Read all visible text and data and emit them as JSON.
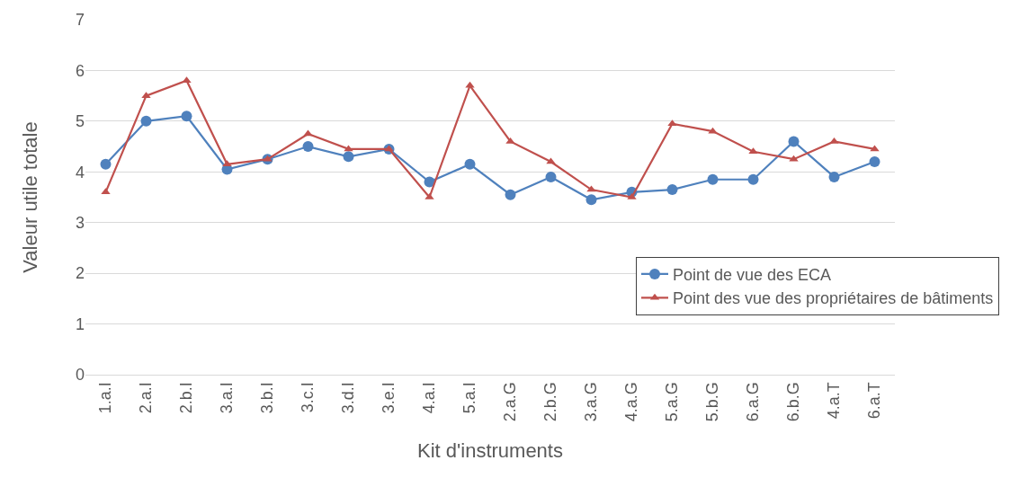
{
  "chart_data": {
    "type": "line",
    "xlabel": "Kit d'instruments",
    "ylabel": "Valeur utile totale",
    "categories": [
      "1.a.I",
      "2.a.I",
      "2.b.I",
      "3.a.I",
      "3.b.I",
      "3.c.I",
      "3.d.I",
      "3.e.I",
      "4.a.I",
      "5.a.I",
      "2.a.G",
      "2.b.G",
      "3.a.G",
      "4.a.G",
      "5.a.G",
      "5.b.G",
      "6.a.G",
      "6.b.G",
      "4.a.T",
      "6.a.T"
    ],
    "series": [
      {
        "name": "Point de vue des ECA",
        "color": "#4f81bd",
        "marker": "circle",
        "values": [
          4.15,
          5.0,
          5.1,
          4.05,
          4.25,
          4.5,
          4.3,
          4.45,
          3.8,
          4.15,
          3.55,
          3.9,
          3.45,
          3.6,
          3.65,
          3.85,
          3.85,
          4.6,
          3.9,
          4.2
        ]
      },
      {
        "name": "Point des vue des propriétaires de bâtiments",
        "color": "#c0504d",
        "marker": "triangle",
        "values": [
          3.6,
          5.5,
          5.8,
          4.15,
          4.25,
          4.75,
          4.45,
          4.45,
          3.5,
          5.7,
          4.6,
          4.2,
          3.65,
          3.5,
          4.95,
          4.8,
          4.4,
          4.25,
          4.6,
          4.45
        ]
      }
    ],
    "ylim": [
      0,
      7
    ],
    "yticks": [
      0,
      1,
      2,
      3,
      4,
      5,
      6,
      7
    ],
    "grid": "y",
    "legend": "right",
    "line_style": "solid"
  }
}
